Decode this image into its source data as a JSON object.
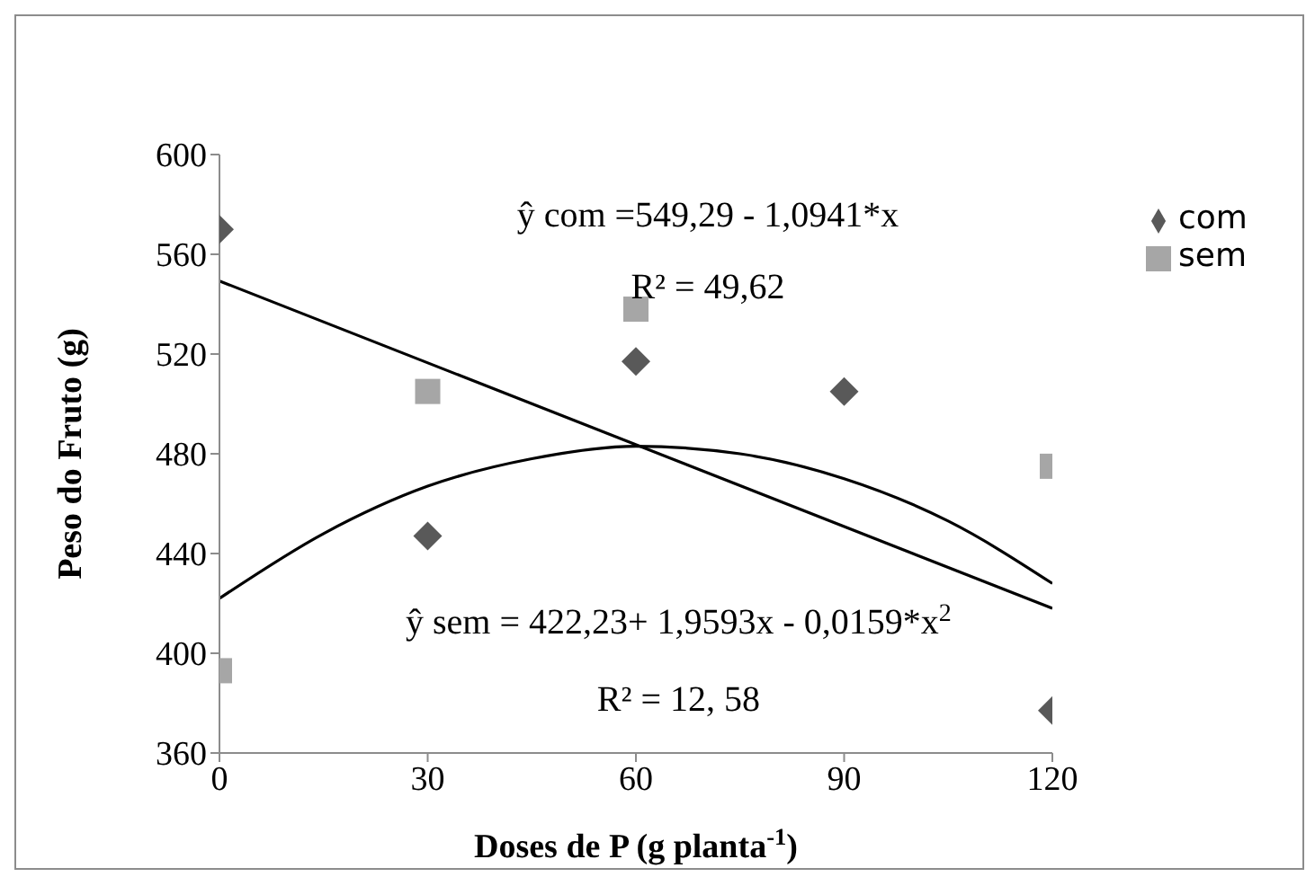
{
  "chart_data": {
    "type": "scatter",
    "xlabel": "Doses de P (g planta$^{-1}$)",
    "ylabel": "Peso do Fruto (g)",
    "xlim": [
      0,
      120
    ],
    "xticks": [
      0,
      30,
      60,
      90,
      120
    ],
    "ylim": [
      360,
      600
    ],
    "yticks": [
      360,
      400,
      440,
      480,
      520,
      560,
      600
    ],
    "grid": false,
    "legend": "top right",
    "series": [
      {
        "name": "com",
        "color": "#595959",
        "marker": "diamond",
        "x": [
          0,
          30,
          60,
          90,
          120
        ],
        "values": [
          570,
          447,
          517,
          505,
          377
        ]
      },
      {
        "name": "sem",
        "color": "#a6a6a6",
        "marker": "square",
        "x": [
          0,
          30,
          60,
          120
        ],
        "values": [
          393,
          505,
          538,
          475
        ]
      },
      {
        "type": "line",
        "color": "#000000",
        "marker": "none",
        "x": [
          0,
          120
        ],
        "values": [
          549.3,
          418
        ]
      },
      {
        "type": "line",
        "color": "#000000",
        "marker": "none",
        "x": [
          0,
          15,
          30,
          45,
          60,
          75,
          90,
          105,
          120
        ],
        "values": [
          422,
          448,
          467,
          478,
          483,
          480,
          470,
          453,
          428
        ]
      }
    ],
    "annotations": [
      "ŷ com =549,29 - 1,0941*x",
      "R² = 49,62",
      "ŷ  sem = 422,23+ 1,9593x - 0,0159*x$^{2}$",
      "R² = 12, 58"
    ]
  }
}
